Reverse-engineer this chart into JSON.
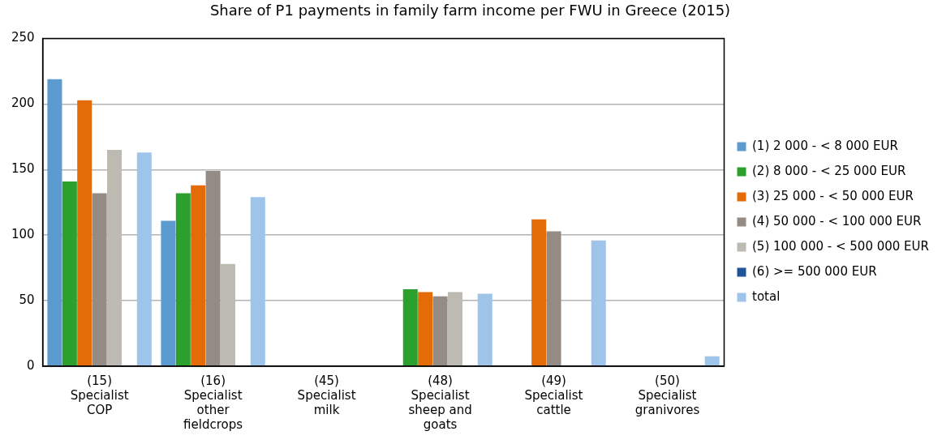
{
  "chart_data": {
    "type": "bar",
    "title": "Share of P1 payments in family farm income per FWU in Greece (2015)",
    "categories": [
      "(15) Specialist COP",
      "(16) Specialist other fieldcrops",
      "(45) Specialist milk",
      "(48) Specialist sheep and goats",
      "(49) Specialist cattle",
      "(50) Specialist granivores"
    ],
    "series": [
      {
        "name": "(1) 2 000 - < 8 000 EUR",
        "color": "#5b9bcf",
        "values": [
          219,
          111,
          null,
          null,
          null,
          null
        ]
      },
      {
        "name": "(2) 8 000 - < 25 000 EUR",
        "color": "#2ca02c",
        "values": [
          141,
          132,
          null,
          58.7,
          null,
          null
        ]
      },
      {
        "name": "(3) 25 000 - < 50 000 EUR",
        "color": "#e36c09",
        "values": [
          203,
          138,
          null,
          56.6,
          112,
          null
        ]
      },
      {
        "name": "(4) 50 000 - < 100 000 EUR",
        "color": "#938b84",
        "values": [
          132,
          149,
          null,
          53.3,
          103,
          null
        ]
      },
      {
        "name": "(5) 100 000 - < 500 000 EUR",
        "color": "#bdbab2",
        "values": [
          165,
          78,
          null,
          56.6,
          null,
          null
        ]
      },
      {
        "name": "(6) >= 500 000 EUR",
        "color": "#1f5596",
        "values": [
          null,
          null,
          null,
          null,
          null,
          null
        ]
      },
      {
        "name": "total",
        "color": "#9fc4ea",
        "values": [
          163,
          129,
          null,
          55.3,
          96,
          7.5
        ]
      }
    ],
    "ylim": [
      0,
      250
    ],
    "yticks": [
      0,
      50,
      100,
      150,
      200,
      250
    ],
    "grid": "y",
    "legend": "right"
  }
}
